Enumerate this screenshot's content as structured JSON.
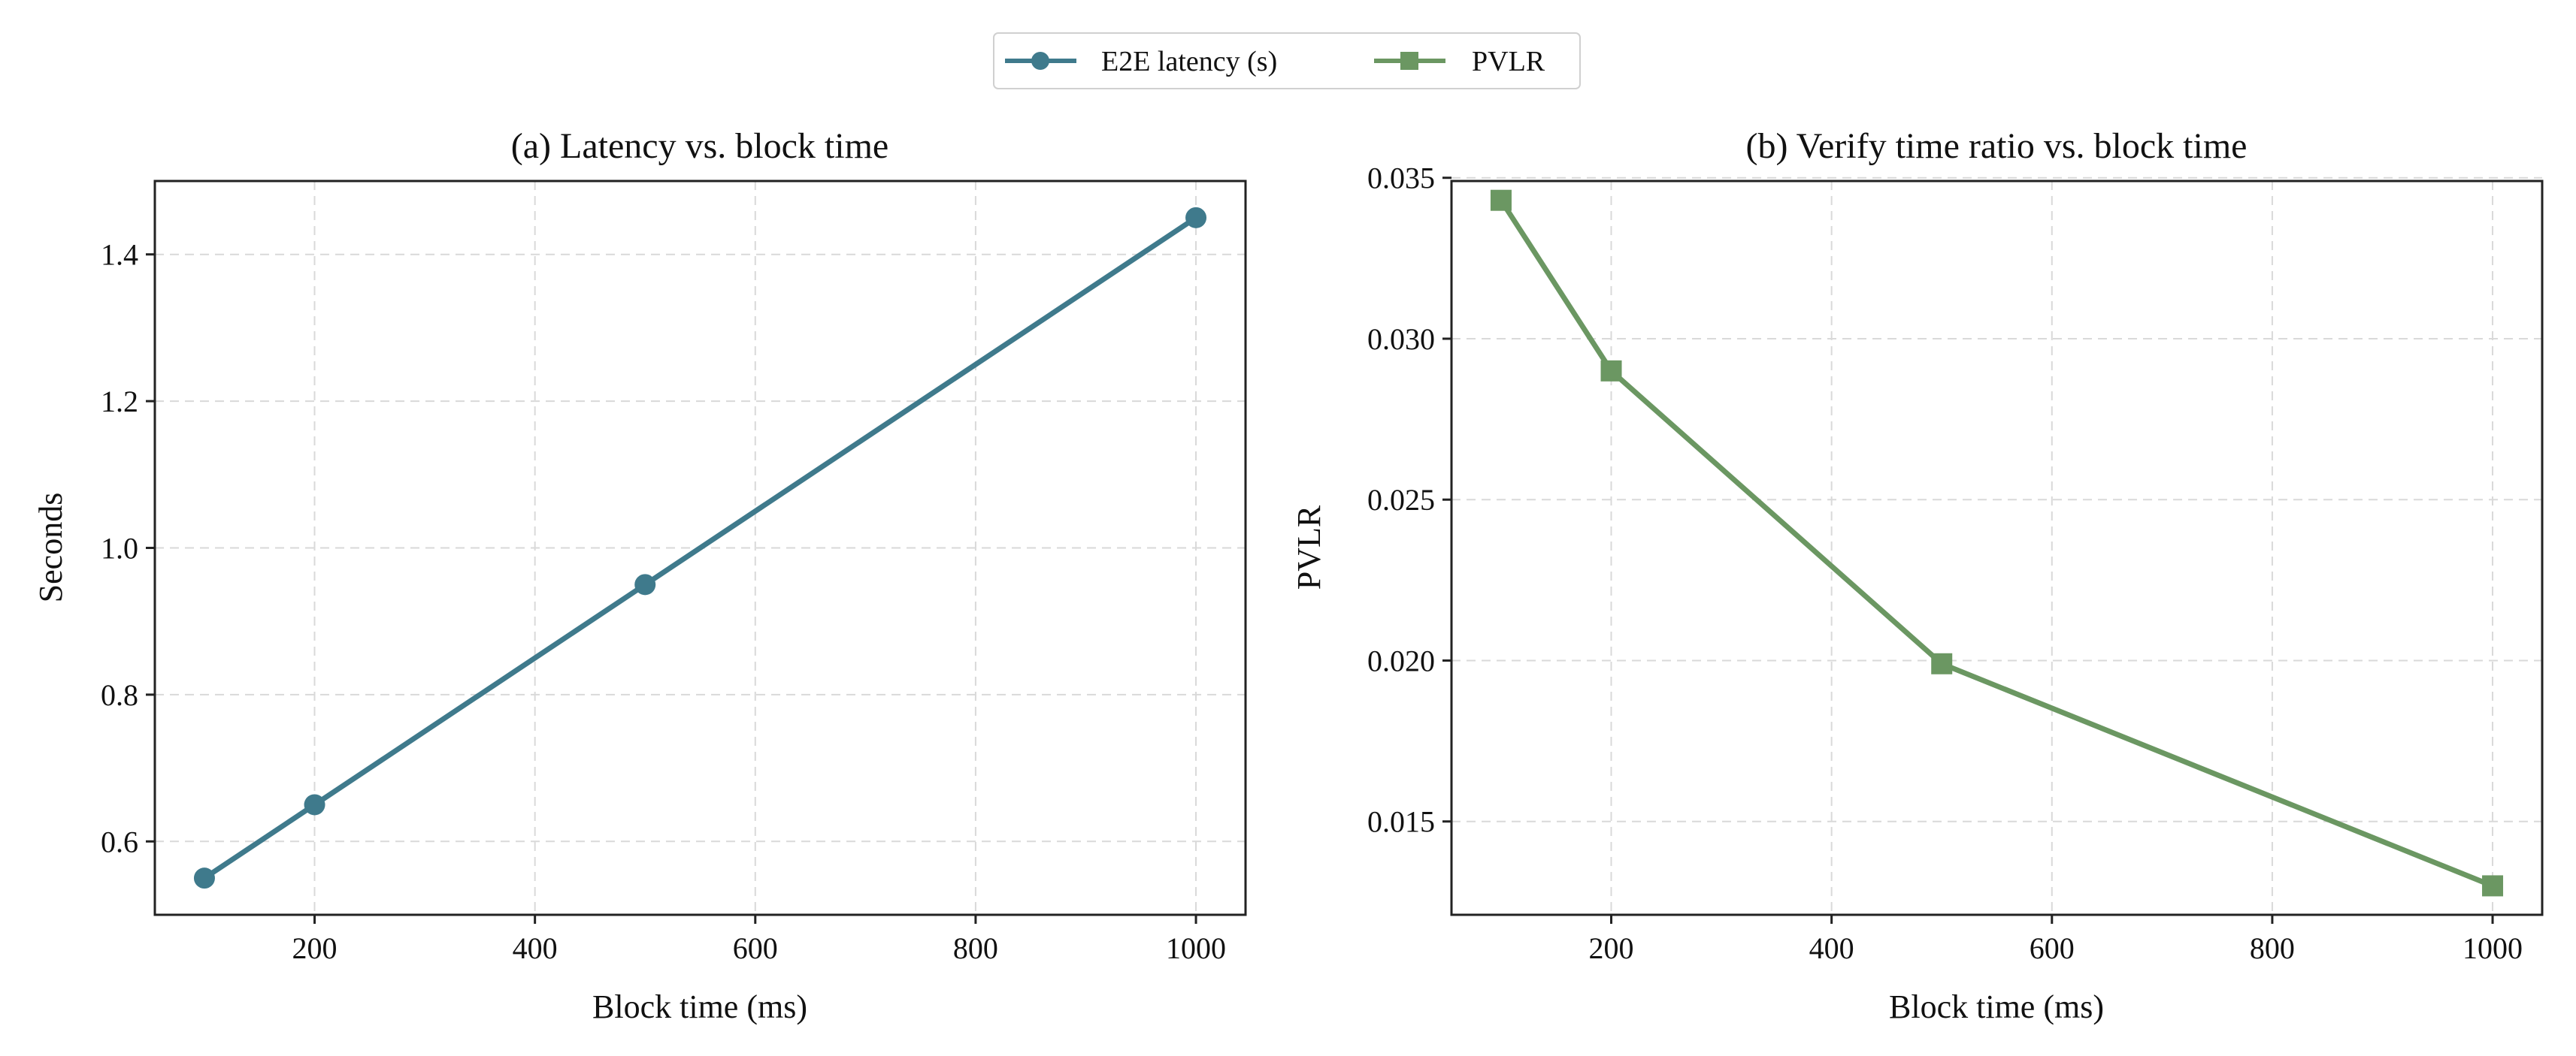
{
  "legend": {
    "entries": [
      {
        "label": "E2E latency (s)",
        "color": "#3f7a8c",
        "marker": "circle"
      },
      {
        "label": "PVLR",
        "color": "#6b9762",
        "marker": "square"
      }
    ]
  },
  "colors": {
    "grid": "#d9d9d9",
    "axis": "#222222"
  },
  "chart_data": [
    {
      "type": "line",
      "title": "(a) Latency vs. block time",
      "xlabel": "Block time (ms)",
      "ylabel": "Seconds",
      "xlim": [
        55,
        1045
      ],
      "ylim": [
        0.5,
        1.5
      ],
      "xticks": [
        200,
        400,
        600,
        800,
        1000
      ],
      "yticks": [
        0.6,
        0.8,
        1.0,
        1.2,
        1.4
      ],
      "ytick_labels": [
        "0.6",
        "0.8",
        "1.0",
        "1.2",
        "1.4"
      ],
      "grid": true,
      "series": [
        {
          "name": "E2E latency (s)",
          "x": [
            100,
            200,
            500,
            1000
          ],
          "y": [
            0.55,
            0.65,
            0.95,
            1.45
          ],
          "marker": "circle",
          "color": "#3f7a8c"
        }
      ]
    },
    {
      "type": "line",
      "title": "(b) Verify time ratio vs. block time",
      "xlabel": "Block time (ms)",
      "ylabel": "PVLR",
      "xlim": [
        55,
        1045
      ],
      "ylim": [
        0.0121,
        0.0349
      ],
      "xticks": [
        200,
        400,
        600,
        800,
        1000
      ],
      "yticks": [
        0.015,
        0.02,
        0.025,
        0.03,
        0.035
      ],
      "ytick_labels": [
        "0.015",
        "0.020",
        "0.025",
        "0.030",
        "0.035"
      ],
      "grid": true,
      "series": [
        {
          "name": "PVLR",
          "x": [
            100,
            200,
            500,
            1000
          ],
          "y": [
            0.0343,
            0.029,
            0.0199,
            0.013
          ],
          "marker": "square",
          "color": "#6b9762"
        }
      ]
    }
  ]
}
